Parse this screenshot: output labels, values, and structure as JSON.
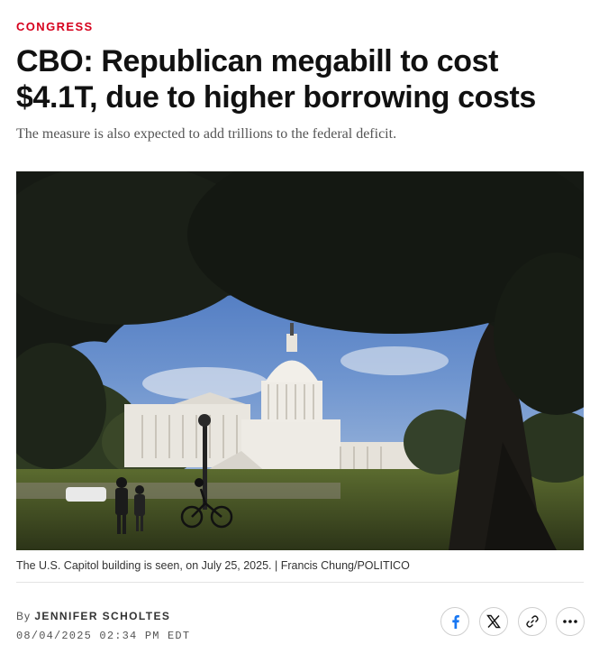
{
  "article": {
    "category": "CONGRESS",
    "headline": "CBO: Republican megabill to cost $4.1T, due to higher borrowing costs",
    "dek": "The measure is also expected to add trillions to the federal deficit.",
    "image_caption": "The U.S. Capitol building is seen, on July 25, 2025. | Francis Chung/POLITICO",
    "byline_prefix": "By",
    "author": "JENNIFER SCHOLTES",
    "timestamp": "08/04/2025 02:34 PM EDT"
  },
  "share": {
    "buttons": [
      {
        "icon": "facebook-icon"
      },
      {
        "icon": "x-icon"
      },
      {
        "icon": "link-icon"
      },
      {
        "icon": "more-icon"
      }
    ]
  },
  "colors": {
    "accent": "#d6001c",
    "facebook": "#1877f2"
  }
}
